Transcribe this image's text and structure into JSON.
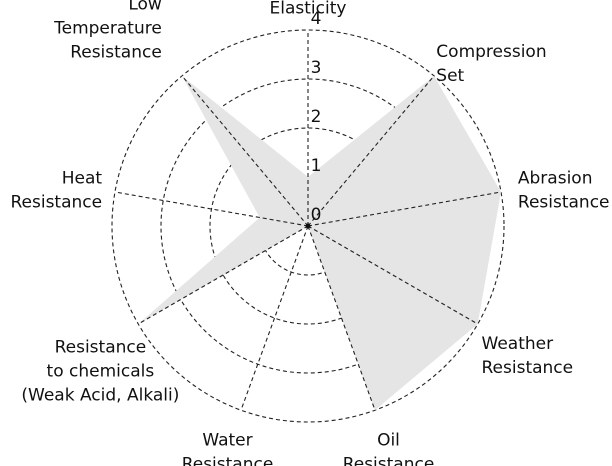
{
  "chart_data": {
    "type": "radar",
    "title": "",
    "rlim": [
      0,
      4
    ],
    "ticks": [
      "0",
      "1",
      "2",
      "3",
      "4"
    ],
    "grid": true,
    "fill_color": "#e5e5e5",
    "grid_color": "#222222",
    "axes": [
      {
        "key": "elasticity",
        "lines": [
          "Elasticity"
        ],
        "value": 1
      },
      {
        "key": "compression-set",
        "lines": [
          "Compression",
          "Set"
        ],
        "value": 4
      },
      {
        "key": "abrasion-resistance",
        "lines": [
          "Abrasion",
          "Resistance"
        ],
        "value": 4
      },
      {
        "key": "weather-resistance",
        "lines": [
          "Weather",
          "Resistance"
        ],
        "value": 4
      },
      {
        "key": "oil-resistance",
        "lines": [
          "Oil",
          "Resistance"
        ],
        "value": 4
      },
      {
        "key": "water-resistance",
        "lines": [
          "Water",
          "Resistance"
        ],
        "value": 0
      },
      {
        "key": "chemical-resistance",
        "lines": [
          "Resistance",
          "to chemicals",
          "(Weak Acid, Alkali)"
        ],
        "value": 4
      },
      {
        "key": "heat-resistance",
        "lines": [
          "Heat",
          "Resistance"
        ],
        "value": 1
      },
      {
        "key": "low-temperature-resistance",
        "lines": [
          "Low",
          "Temperature",
          "Resistance"
        ],
        "value": 4
      }
    ]
  }
}
